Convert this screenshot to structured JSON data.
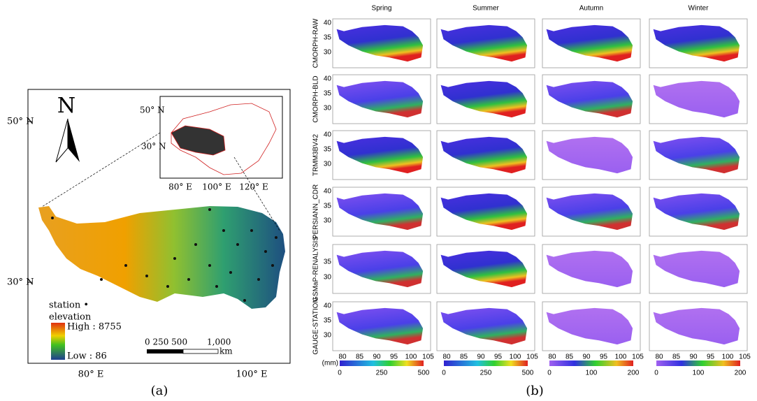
{
  "panel_a": {
    "lat_labels": [
      "50° N",
      "30° N"
    ],
    "lon_labels": [
      "80° E",
      "100° E"
    ],
    "north": "N",
    "inset": {
      "lat_labels": [
        "50° N",
        "30° N"
      ],
      "lon_labels": [
        "80° E",
        "100° E",
        "120° E"
      ]
    },
    "legend": {
      "station": "station •",
      "elevation": "elevation",
      "high": "High : 8755",
      "low": "Low : 86"
    },
    "scale": {
      "labels": [
        "0 250 500",
        "1,000"
      ],
      "unit": "km"
    },
    "caption": "(a)"
  },
  "panel_b": {
    "seasons": [
      "Spring",
      "Summer",
      "Autumn",
      "Winter"
    ],
    "products": [
      {
        "name": "CMORPH-RAW",
        "y_ticks": [
          "40",
          "35",
          "30"
        ]
      },
      {
        "name": "CMORPH-BLD",
        "y_ticks": [
          "40",
          "35",
          "30"
        ]
      },
      {
        "name": "TRMM3BV42",
        "y_ticks": [
          "40",
          "35",
          "30"
        ]
      },
      {
        "name": "PERSIANN_CDR",
        "y_ticks": [
          "40",
          "35",
          "30"
        ]
      },
      {
        "name": "GSMaP-RENALYSIS",
        "y_ticks": [
          "35",
          "30"
        ]
      },
      {
        "name": "GAUGE-STATION",
        "y_ticks": [
          "40",
          "35",
          "30"
        ]
      }
    ],
    "x_ticks": [
      "80",
      "85",
      "90",
      "95",
      "100",
      "105"
    ],
    "colorbars": [
      {
        "unit": "(mm)",
        "ticks": [
          "0",
          "250",
          "500"
        ]
      },
      {
        "ticks": [
          "0",
          "250",
          "500"
        ]
      },
      {
        "ticks": [
          "0",
          "100",
          "200"
        ]
      },
      {
        "ticks": [
          "0",
          "100",
          "200"
        ]
      }
    ],
    "caption": "(b)"
  }
}
